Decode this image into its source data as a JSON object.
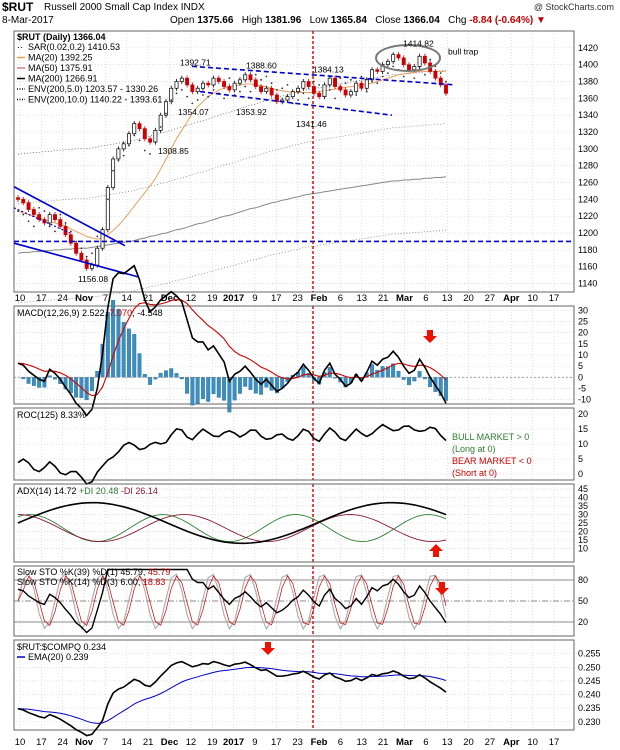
{
  "header": {
    "symbol": "$RUT",
    "name": "Russell 2000 Small Cap Index  INDX",
    "brand": "@ StockCharts.com",
    "date": "8-Mar-2017",
    "open_label": "Open",
    "open": "1375.66",
    "high_label": "High",
    "high": "1381.96",
    "low_label": "Low",
    "low": "1365.84",
    "close_label": "Close",
    "close": "1366.04",
    "chg_label": "Chg",
    "chg": "-8.84 (-0.64%)"
  },
  "colors": {
    "up": "#000000",
    "down": "#cc0000",
    "ma20": "#e8a060",
    "ma50": "#d08080",
    "ma200": "#888888",
    "blue": "#0000cc",
    "red_line": "#cc0000",
    "hist": "#3a8fc0",
    "green": "#2e7d32",
    "grid": "#cccccc"
  },
  "chart_data": [
    {
      "type": "line",
      "pane": "price",
      "title": "$RUT (Daily) 1366.04",
      "legend": [
        {
          "text": "SAR(0.02,0.2) 1410.53",
          "color": "#000000",
          "marker": "dots"
        },
        {
          "text": "MA(20) 1392.25",
          "color": "#e8a060",
          "marker": "line"
        },
        {
          "text": "MA(50) 1375.91",
          "color": "#d08080",
          "marker": "line"
        },
        {
          "text": "MA(200) 1266.91",
          "color": "#000000",
          "marker": "line"
        },
        {
          "text": "ENV(200,5.0) 1203.57 - 1330.26",
          "color": "#000000",
          "marker": "dotted"
        },
        {
          "text": "ENV(200,10.0) 1140.22 - 1393.61",
          "color": "#000000",
          "marker": "dotted"
        }
      ],
      "ylim": [
        1130,
        1440
      ],
      "y_ticks": [
        1140,
        1160,
        1180,
        1200,
        1220,
        1240,
        1260,
        1280,
        1300,
        1320,
        1340,
        1360,
        1380,
        1400,
        1420
      ],
      "x_ticks": [
        "10",
        "17",
        "24",
        "Nov",
        "7",
        "14",
        "21",
        "Dec",
        "12",
        "19",
        "2017",
        "9",
        "17",
        "23",
        "Feb",
        "6",
        "13",
        "21",
        "Mar",
        "6",
        "13",
        "20",
        "27",
        "Apr",
        "10",
        "17"
      ],
      "annotations": [
        "1392.71",
        "1388.60",
        "1384.13",
        "1414.82",
        "1354.07",
        "1353.92",
        "1341.46",
        "1308.85",
        "1156.08",
        "bull trap"
      ],
      "horizontal_line": 1190,
      "series": [
        {
          "name": "$RUT",
          "values": [
            1240,
            1236,
            1228,
            1222,
            1216,
            1212,
            1222,
            1216,
            1208,
            1198,
            1188,
            1176,
            1168,
            1158,
            1162,
            1182,
            1204,
            1254,
            1288,
            1300,
            1306,
            1318,
            1330,
            1324,
            1312,
            1308,
            1322,
            1340,
            1356,
            1372,
            1380,
            1384,
            1376,
            1368,
            1372,
            1378,
            1376,
            1384,
            1380,
            1374,
            1370,
            1378,
            1382,
            1388,
            1382,
            1374,
            1368,
            1372,
            1364,
            1356,
            1358,
            1362,
            1368,
            1372,
            1380,
            1374,
            1366,
            1362,
            1376,
            1384,
            1374,
            1370,
            1364,
            1368,
            1378,
            1372,
            1382,
            1394,
            1392,
            1400,
            1404,
            1412,
            1408,
            1400,
            1394,
            1398,
            1410,
            1402,
            1392,
            1384,
            1376,
            1366
          ]
        },
        {
          "name": "MA(20)",
          "values": [
            1226,
            1224,
            1222,
            1220,
            1218,
            1216,
            1214,
            1212,
            1210,
            1208,
            1205,
            1202,
            1199,
            1196,
            1194,
            1193,
            1194,
            1198,
            1203,
            1209,
            1216,
            1224,
            1232,
            1240,
            1248,
            1256,
            1265,
            1276,
            1288,
            1300,
            1312,
            1322,
            1332,
            1342,
            1350,
            1356,
            1362,
            1366,
            1370,
            1372,
            1374,
            1375,
            1376,
            1377,
            1377,
            1376,
            1375,
            1374,
            1372,
            1370,
            1369,
            1368,
            1367,
            1367,
            1367,
            1367,
            1367,
            1368,
            1369,
            1370,
            1371,
            1372,
            1373,
            1374,
            1375,
            1376,
            1377,
            1378,
            1380,
            1382,
            1384,
            1386,
            1388,
            1389,
            1390,
            1391,
            1392,
            1392,
            1392,
            1392,
            1392,
            1392
          ]
        },
        {
          "name": "MA(200)",
          "values": [
            1176,
            1177,
            1177,
            1178,
            1178,
            1179,
            1179,
            1180,
            1180,
            1181,
            1181,
            1182,
            1182,
            1182,
            1183,
            1184,
            1185,
            1186,
            1187,
            1188,
            1189,
            1190,
            1191,
            1193,
            1194,
            1196,
            1197,
            1199,
            1200,
            1202,
            1204,
            1205,
            1207,
            1209,
            1211,
            1212,
            1214,
            1216,
            1218,
            1220,
            1221,
            1223,
            1225,
            1227,
            1229,
            1230,
            1232,
            1234,
            1236,
            1237,
            1239,
            1240,
            1242,
            1243,
            1245,
            1246,
            1247,
            1248,
            1249,
            1250,
            1251,
            1252,
            1253,
            1254,
            1255,
            1256,
            1257,
            1258,
            1259,
            1260,
            1261,
            1262,
            1262,
            1263,
            1263,
            1264,
            1264,
            1265,
            1265,
            1266,
            1266,
            1267
          ]
        }
      ]
    },
    {
      "type": "line",
      "pane": "macd",
      "title": "MACD(12,26,9) 2.522, 7.070, -4.548",
      "legend_parts": [
        {
          "text": "MACD(12,26,9) 2.522, ",
          "color": "#000000"
        },
        {
          "text": "7.070",
          "color": "#cc0000"
        },
        {
          "text": ", -4.548",
          "color": "#000000"
        }
      ],
      "ylim": [
        -12,
        32
      ],
      "y_ticks": [
        -10,
        -5,
        0,
        5,
        10,
        15,
        20,
        25,
        30
      ]
    },
    {
      "type": "line",
      "pane": "roc",
      "title": "ROC(125) 8.33%",
      "ylim": [
        -2,
        22
      ],
      "y_ticks": [
        0,
        5,
        10,
        15,
        20
      ],
      "notes": [
        {
          "text": "BULL MARKET > 0",
          "color": "#2e7d32"
        },
        {
          "text": "(Long at 0)",
          "color": "#2e7d32"
        },
        {
          "text": "BEAR MARKET < 0",
          "color": "#cc0000"
        },
        {
          "text": "(Short at 0)",
          "color": "#cc0000"
        }
      ]
    },
    {
      "type": "line",
      "pane": "adx",
      "title": "ADX(14) 14.72 +DI 20.48 -DI 26.14",
      "legend_parts": [
        {
          "text": "ADX(14) 14.72 ",
          "color": "#000000"
        },
        {
          "text": "+DI 20.48 ",
          "color": "#2e7d32"
        },
        {
          "text": "-DI 26.14",
          "color": "#8b1a3a"
        }
      ],
      "ylim": [
        2,
        48
      ],
      "y_ticks": [
        10,
        15,
        20,
        25,
        30,
        35,
        40,
        45
      ]
    },
    {
      "type": "line",
      "pane": "stoch",
      "title_lines": [
        {
          "text": "Slow STO %K(39) %D(1) 45.79, 45.79",
          "parts": [
            {
              "text": "Slow STO %K(39) %D(1) 45.79, ",
              "color": "#000000"
            },
            {
              "text": "45.79",
              "color": "#cc0000"
            }
          ]
        },
        {
          "text": "Slow STO %K(14) %D(3) 6.00, 18.83",
          "parts": [
            {
              "text": "Slow STO %K(14) %D(3) 6.00, ",
              "color": "#000000"
            },
            {
              "text": "18.83",
              "color": "#cc0000"
            }
          ]
        }
      ],
      "ylim": [
        0,
        100
      ],
      "y_ticks": [
        20,
        50,
        80
      ]
    },
    {
      "type": "line",
      "pane": "ratio",
      "title": "$RUT:$COMPQ 0.234",
      "legend": [
        {
          "text": "EMA(20) 0.239",
          "color": "#0000cc"
        }
      ],
      "ylim": [
        0.227,
        0.26
      ],
      "y_ticks": [
        0.23,
        0.235,
        0.24,
        0.245,
        0.25,
        0.255
      ]
    }
  ]
}
